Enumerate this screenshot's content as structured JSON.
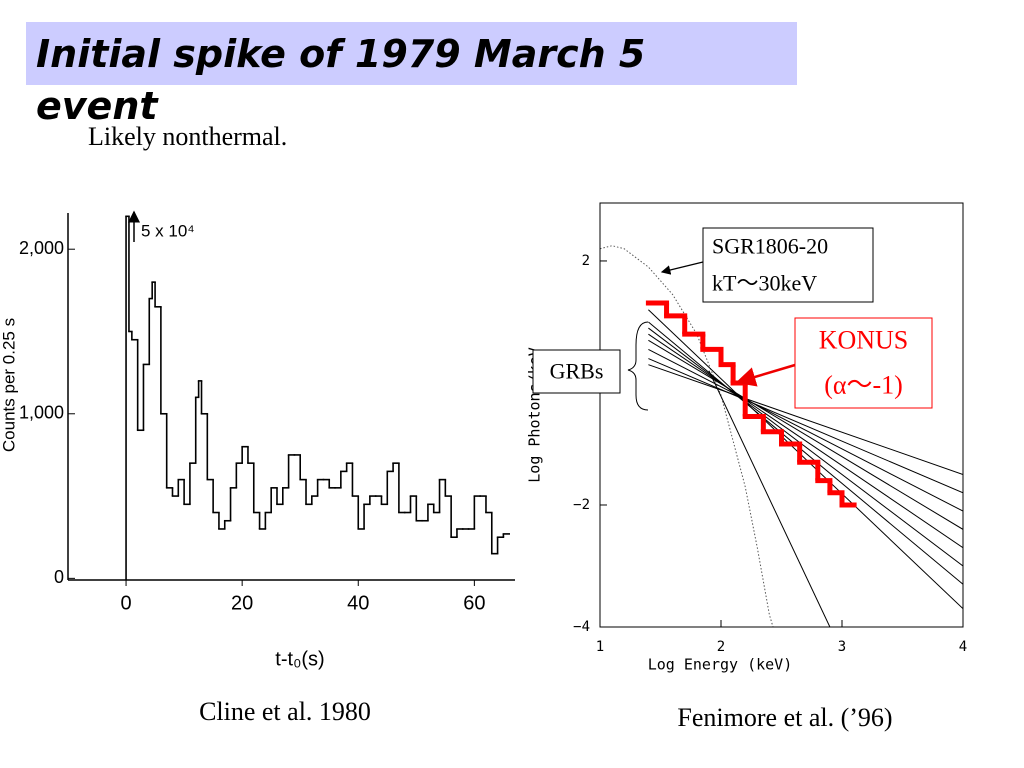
{
  "title": "Initial spike of 1979 March 5 event",
  "subtitle": "Likely nonthermal.",
  "chart_data": [
    {
      "type": "line",
      "step": true,
      "x_label": "t-t₀(s)",
      "y_label": "Counts per 0.25 s",
      "annotation": "5 x 10⁴",
      "caption": "Cline et al. 1980",
      "xlim": [
        -10,
        67
      ],
      "ylim": [
        -10,
        2220
      ],
      "xticks": [
        0,
        20,
        40,
        60
      ],
      "yticks": [
        0,
        {
          "value": 1000,
          "label": "1,000"
        },
        {
          "value": 2000,
          "label": "2,000"
        }
      ],
      "x": [
        0,
        0.5,
        1,
        2,
        3,
        4,
        4.5,
        5,
        6,
        7,
        8,
        9,
        10,
        11,
        12,
        12.5,
        13,
        14,
        15,
        16,
        17,
        18,
        19,
        20,
        21,
        22,
        23,
        24,
        25,
        26,
        27,
        28,
        29,
        30,
        31,
        32,
        33,
        34,
        35,
        36,
        37,
        38,
        39,
        40,
        41,
        42,
        43,
        44,
        45,
        46,
        47,
        48,
        49,
        50,
        51,
        52,
        53,
        54,
        55,
        56,
        57,
        58,
        59,
        60,
        61,
        62,
        63,
        64,
        65
      ],
      "series": [
        {
          "color": "#000000",
          "values": [
            2200,
            1500,
            1450,
            900,
            1300,
            1700,
            1800,
            1650,
            1000,
            550,
            500,
            600,
            450,
            700,
            1100,
            1200,
            1000,
            600,
            400,
            300,
            350,
            550,
            700,
            800,
            700,
            400,
            300,
            400,
            550,
            450,
            550,
            750,
            750,
            600,
            450,
            500,
            600,
            600,
            550,
            550,
            650,
            700,
            500,
            300,
            450,
            500,
            500,
            450,
            650,
            700,
            400,
            400,
            500,
            350,
            350,
            450,
            400,
            600,
            500,
            250,
            300,
            300,
            300,
            500,
            500,
            400,
            150,
            250,
            270
          ]
        }
      ]
    },
    {
      "type": "line",
      "x_label": "Log Energy (keV)",
      "y_label": "Log Photons/keV",
      "caption": "Fenimore et al. (’96)",
      "xlim": [
        1,
        4
      ],
      "ylim": [
        -4,
        2.95
      ],
      "xticks": [
        1,
        2,
        3,
        4
      ],
      "yticks": [
        {
          "value": -4,
          "label": "−4"
        },
        {
          "value": -2,
          "label": "−2"
        },
        2
      ],
      "annotations": [
        {
          "lines": [
            "SGR1806-20",
            "kT～30keV"
          ]
        },
        {
          "lines": [
            "KONUS",
            "(α～-1)"
          ],
          "color": "#ff0000"
        },
        {
          "lines": [
            "GRBs"
          ]
        }
      ],
      "series": [
        {
          "color": "#555555",
          "dash": true,
          "x": [
            1.0,
            1.1,
            1.2,
            1.4,
            1.6,
            1.8,
            2.0,
            2.2,
            2.3,
            2.4,
            2.43
          ],
          "values": [
            2.2,
            2.25,
            2.2,
            1.9,
            1.45,
            0.8,
            -0.2,
            -1.7,
            -2.7,
            -3.8,
            -4
          ]
        },
        {
          "color": "#000000",
          "x": [
            1.4,
            4
          ],
          "values": [
            1.2,
            -3.7
          ]
        },
        {
          "color": "#000000",
          "x": [
            1.4,
            4
          ],
          "values": [
            1.0,
            -3.3
          ]
        },
        {
          "color": "#000000",
          "x": [
            1.4,
            4
          ],
          "values": [
            0.9,
            -3.0
          ]
        },
        {
          "color": "#000000",
          "x": [
            1.4,
            4
          ],
          "values": [
            0.8,
            -2.7
          ]
        },
        {
          "color": "#000000",
          "x": [
            1.4,
            4
          ],
          "values": [
            0.7,
            -2.4
          ]
        },
        {
          "color": "#000000",
          "x": [
            1.4,
            4
          ],
          "values": [
            0.55,
            -2.1
          ]
        },
        {
          "color": "#000000",
          "x": [
            1.4,
            4
          ],
          "values": [
            0.4,
            -1.8
          ]
        },
        {
          "color": "#000000",
          "x": [
            1.4,
            4
          ],
          "values": [
            0.3,
            -1.5
          ]
        },
        {
          "color": "#000000",
          "x": [
            1.9,
            2.9
          ],
          "values": [
            0.2,
            -4
          ]
        },
        {
          "color": "#ff0000",
          "step": true,
          "x": [
            1.4,
            1.55,
            1.7,
            1.85,
            2.0,
            2.1,
            2.2,
            2.35,
            2.5,
            2.65,
            2.8,
            2.9,
            3.0
          ],
          "values": [
            1.31,
            1.1,
            0.8,
            0.55,
            0.3,
            0.0,
            -0.55,
            -0.8,
            -1.0,
            -1.3,
            -1.6,
            -1.8,
            -2.0
          ]
        }
      ]
    }
  ]
}
